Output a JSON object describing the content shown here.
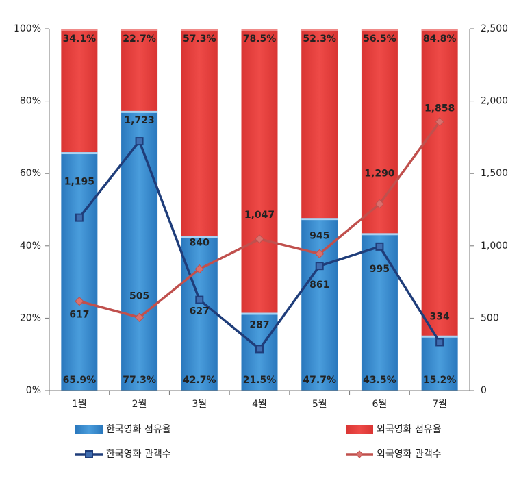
{
  "chart_data": {
    "type": "bar",
    "categories": [
      "1월",
      "2월",
      "3월",
      "4월",
      "5월",
      "6월",
      "7월"
    ],
    "series": [
      {
        "name": "한국영화 점유율",
        "type": "bar",
        "color": "#3d8fd1",
        "values": [
          65.9,
          77.3,
          42.7,
          21.5,
          47.7,
          43.5,
          15.2
        ],
        "value_labels": [
          "65.9%",
          "77.3%",
          "42.7%",
          "21.5%",
          "47.7%",
          "43.5%",
          "15.2%"
        ]
      },
      {
        "name": "외국영화 점유율",
        "type": "bar",
        "color": "#e8403d",
        "values": [
          34.1,
          22.7,
          57.3,
          78.5,
          52.3,
          56.5,
          84.8
        ],
        "value_labels": [
          "34.1%",
          "22.7%",
          "57.3%",
          "78.5%",
          "52.3%",
          "56.5%",
          "84.8%"
        ]
      },
      {
        "name": "한국영화 관객수",
        "type": "line",
        "axis": "y2",
        "color": "#1f3d7a",
        "values": [
          1195,
          1723,
          627,
          287,
          861,
          995,
          334
        ],
        "value_labels": [
          "1,195",
          "1,723",
          "627",
          "287",
          "861",
          "995",
          "334"
        ]
      },
      {
        "name": "외국영화 관객수",
        "type": "line",
        "axis": "y2",
        "color": "#c0504d",
        "values": [
          617,
          505,
          840,
          1047,
          945,
          1290,
          1858
        ],
        "value_labels": [
          "617",
          "505",
          "840",
          "1,047",
          "945",
          "1,290",
          "1,858"
        ]
      }
    ],
    "ylim": [
      0,
      100
    ],
    "yticks": [
      {
        "value": 0,
        "label": "0%"
      },
      {
        "value": 20,
        "label": "20%"
      },
      {
        "value": 40,
        "label": "40%"
      },
      {
        "value": 60,
        "label": "60%"
      },
      {
        "value": 80,
        "label": "80%"
      },
      {
        "value": 100,
        "label": "100%"
      }
    ],
    "y2lim": [
      0,
      2500
    ],
    "y2ticks": [
      0,
      500,
      {
        "value": 1000,
        "label": "1,000"
      },
      {
        "value": 1500,
        "label": "1,500"
      },
      {
        "value": 2000,
        "label": "2,000"
      },
      {
        "value": 2500,
        "label": "2,500"
      }
    ],
    "stacked": true
  }
}
